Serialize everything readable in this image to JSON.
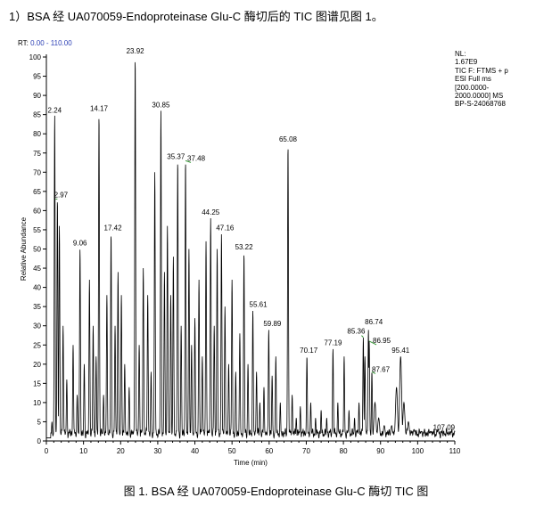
{
  "heading": "1）BSA 经 UA070059-Endoproteinase Glu-C 酶切后的 TIC 图谱见图 1。",
  "rt_label": "RT:",
  "rt_range": "0.00 - 110.00",
  "info_lines": [
    "NL:",
    "1.67E9",
    "TIC F: FTMS + p",
    "ESI Full ms",
    "[200.0000-",
    "2000.0000]  MS",
    "BP-S-24068768"
  ],
  "caption": "图 1. BSA 经 UA070059-Endoproteinase Glu-C 酶切 TIC 图",
  "colors": {
    "trace": "#000000",
    "annotation_line": "#3a9a3a",
    "rt_range": "#2b3fb5"
  },
  "chart_data": {
    "type": "line",
    "xlabel": "Time (min)",
    "ylabel": "Relative Abundance",
    "xlim": [
      0,
      110
    ],
    "ylim": [
      0,
      100
    ],
    "x_ticks": [
      0,
      10,
      20,
      30,
      40,
      50,
      60,
      70,
      80,
      90,
      100,
      110
    ],
    "y_ticks": [
      0,
      5,
      10,
      15,
      20,
      25,
      30,
      35,
      40,
      45,
      50,
      55,
      60,
      65,
      70,
      75,
      80,
      85,
      90,
      95,
      100
    ],
    "baseline": 2,
    "labeled_peaks": [
      {
        "label": "2.24",
        "x": 2.24,
        "y": 85
      },
      {
        "label": "2.97",
        "x": 2.97,
        "y": 63
      },
      {
        "label": "9.06",
        "x": 9.06,
        "y": 50
      },
      {
        "label": "14.17",
        "x": 14.17,
        "y": 85
      },
      {
        "label": "17.42",
        "x": 17.42,
        "y": 54
      },
      {
        "label": "23.92",
        "x": 23.92,
        "y": 100
      },
      {
        "label": "30.85",
        "x": 30.85,
        "y": 86
      },
      {
        "label": "35.37",
        "x": 35.37,
        "y": 73
      },
      {
        "label": "37.48",
        "x": 37.48,
        "y": 73
      },
      {
        "label": "44.25",
        "x": 44.25,
        "y": 58
      },
      {
        "label": "47.16",
        "x": 47.16,
        "y": 54
      },
      {
        "label": "53.22",
        "x": 53.22,
        "y": 49
      },
      {
        "label": "55.61",
        "x": 55.61,
        "y": 34
      },
      {
        "label": "59.89",
        "x": 59.89,
        "y": 29
      },
      {
        "label": "65.08",
        "x": 65.08,
        "y": 77
      },
      {
        "label": "70.17",
        "x": 70.17,
        "y": 22
      },
      {
        "label": "77.19",
        "x": 77.19,
        "y": 24
      },
      {
        "label": "85.36",
        "x": 85.36,
        "y": 27
      },
      {
        "label": "86.74",
        "x": 86.74,
        "y": 29
      },
      {
        "label": "86.95",
        "x": 86.95,
        "y": 26
      },
      {
        "label": "87.67",
        "x": 87.67,
        "y": 18
      },
      {
        "label": "95.41",
        "x": 95.41,
        "y": 22
      },
      {
        "label": "107.09",
        "x": 107.09,
        "y": 2
      }
    ],
    "unlabeled_peaks": [
      {
        "x": 1.5,
        "y": 5
      },
      {
        "x": 3.5,
        "y": 56
      },
      {
        "x": 4.5,
        "y": 30
      },
      {
        "x": 5.5,
        "y": 16
      },
      {
        "x": 7.2,
        "y": 25
      },
      {
        "x": 8.3,
        "y": 12
      },
      {
        "x": 10.2,
        "y": 20
      },
      {
        "x": 11.6,
        "y": 42
      },
      {
        "x": 12.6,
        "y": 30
      },
      {
        "x": 13.4,
        "y": 22
      },
      {
        "x": 15.4,
        "y": 12
      },
      {
        "x": 16.3,
        "y": 38
      },
      {
        "x": 18.5,
        "y": 30
      },
      {
        "x": 19.3,
        "y": 44
      },
      {
        "x": 20.2,
        "y": 38
      },
      {
        "x": 21.1,
        "y": 20
      },
      {
        "x": 22.3,
        "y": 14
      },
      {
        "x": 25.0,
        "y": 25
      },
      {
        "x": 26.1,
        "y": 45
      },
      {
        "x": 27.3,
        "y": 38
      },
      {
        "x": 28.2,
        "y": 18
      },
      {
        "x": 29.2,
        "y": 70
      },
      {
        "x": 31.8,
        "y": 44
      },
      {
        "x": 32.6,
        "y": 56
      },
      {
        "x": 33.5,
        "y": 38
      },
      {
        "x": 34.2,
        "y": 48
      },
      {
        "x": 36.3,
        "y": 30
      },
      {
        "x": 38.4,
        "y": 50
      },
      {
        "x": 39.1,
        "y": 25
      },
      {
        "x": 40.0,
        "y": 32
      },
      {
        "x": 41.1,
        "y": 42
      },
      {
        "x": 42.0,
        "y": 22
      },
      {
        "x": 43.0,
        "y": 52
      },
      {
        "x": 45.2,
        "y": 30
      },
      {
        "x": 46.0,
        "y": 50
      },
      {
        "x": 48.1,
        "y": 35
      },
      {
        "x": 49.1,
        "y": 20
      },
      {
        "x": 50.0,
        "y": 42
      },
      {
        "x": 51.0,
        "y": 18
      },
      {
        "x": 52.1,
        "y": 28
      },
      {
        "x": 54.3,
        "y": 20
      },
      {
        "x": 56.6,
        "y": 18
      },
      {
        "x": 57.5,
        "y": 10
      },
      {
        "x": 58.6,
        "y": 14
      },
      {
        "x": 60.8,
        "y": 17
      },
      {
        "x": 61.8,
        "y": 22
      },
      {
        "x": 63.0,
        "y": 10
      },
      {
        "x": 66.2,
        "y": 12
      },
      {
        "x": 67.3,
        "y": 6
      },
      {
        "x": 68.4,
        "y": 9
      },
      {
        "x": 71.2,
        "y": 10
      },
      {
        "x": 72.5,
        "y": 6
      },
      {
        "x": 74.0,
        "y": 8
      },
      {
        "x": 75.5,
        "y": 6
      },
      {
        "x": 78.5,
        "y": 10
      },
      {
        "x": 80.2,
        "y": 22
      },
      {
        "x": 81.5,
        "y": 8
      },
      {
        "x": 83.0,
        "y": 6
      },
      {
        "x": 84.2,
        "y": 10
      },
      {
        "x": 85.8,
        "y": 22
      },
      {
        "x": 88.5,
        "y": 10
      },
      {
        "x": 89.5,
        "y": 6
      },
      {
        "x": 91.0,
        "y": 4
      },
      {
        "x": 93.0,
        "y": 4
      },
      {
        "x": 94.3,
        "y": 14
      },
      {
        "x": 96.3,
        "y": 10
      },
      {
        "x": 97.5,
        "y": 5
      },
      {
        "x": 99.0,
        "y": 3
      },
      {
        "x": 101.0,
        "y": 2.5
      },
      {
        "x": 103.5,
        "y": 2.5
      },
      {
        "x": 105.5,
        "y": 3
      },
      {
        "x": 108.5,
        "y": 2.2
      }
    ]
  }
}
